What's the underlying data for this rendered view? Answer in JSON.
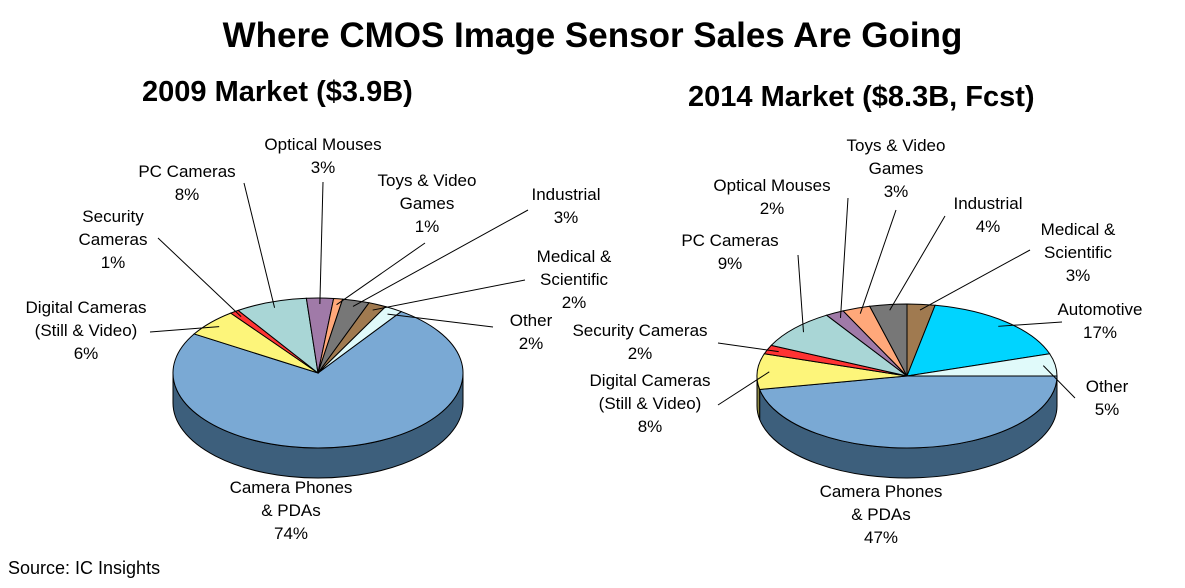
{
  "title": "Where CMOS Image Sensor Sales Are Going",
  "source": "Source:  IC Insights",
  "colors": {
    "camera_phones": "#7aa9d4",
    "camera_phones_side": "#3d5f7c",
    "digital_cameras": "#fdf57a",
    "security_cameras": "#ff3333",
    "pc_cameras": "#a9d6d6",
    "optical_mouses": "#a07aa8",
    "toys_video_games": "#ffa87a",
    "industrial": "#777777",
    "medical_scientific": "#a07a50",
    "automotive": "#00d4ff",
    "other": "#e0fafa",
    "leader_line": "#000000"
  },
  "chart_data": [
    {
      "type": "pie",
      "title": "2009 Market ($3.9B)",
      "slices": [
        {
          "key": "camera_phones",
          "label": [
            "Camera Phones",
            "& PDAs"
          ],
          "pct": "74%",
          "value": 74
        },
        {
          "key": "digital_cameras",
          "label": [
            "Digital Cameras",
            "(Still & Video)"
          ],
          "pct": "6%",
          "value": 6
        },
        {
          "key": "security_cameras",
          "label": [
            "Security",
            "Cameras"
          ],
          "pct": "1%",
          "value": 1
        },
        {
          "key": "pc_cameras",
          "label": [
            "PC Cameras"
          ],
          "pct": "8%",
          "value": 8
        },
        {
          "key": "optical_mouses",
          "label": [
            "Optical Mouses"
          ],
          "pct": "3%",
          "value": 3
        },
        {
          "key": "toys_video_games",
          "label": [
            "Toys & Video",
            "Games"
          ],
          "pct": "1%",
          "value": 1
        },
        {
          "key": "industrial",
          "label": [
            "Industrial"
          ],
          "pct": "3%",
          "value": 3
        },
        {
          "key": "medical_scientific",
          "label": [
            "Medical &",
            "Scientific"
          ],
          "pct": "2%",
          "value": 2
        },
        {
          "key": "other",
          "label": [
            "Other"
          ],
          "pct": "2%",
          "value": 2
        }
      ]
    },
    {
      "type": "pie",
      "title": "2014 Market ($8.3B, Fcst)",
      "slices": [
        {
          "key": "camera_phones",
          "label": [
            "Camera Phones",
            "& PDAs"
          ],
          "pct": "47%",
          "value": 47
        },
        {
          "key": "digital_cameras",
          "label": [
            "Digital Cameras",
            "(Still & Video)"
          ],
          "pct": "8%",
          "value": 8
        },
        {
          "key": "security_cameras",
          "label": [
            "Security Cameras"
          ],
          "pct": "2%",
          "value": 2
        },
        {
          "key": "pc_cameras",
          "label": [
            "PC Cameras"
          ],
          "pct": "9%",
          "value": 9
        },
        {
          "key": "optical_mouses",
          "label": [
            "Optical Mouses"
          ],
          "pct": "2%",
          "value": 2
        },
        {
          "key": "toys_video_games",
          "label": [
            "Toys & Video",
            "Games"
          ],
          "pct": "3%",
          "value": 3
        },
        {
          "key": "industrial",
          "label": [
            "Industrial"
          ],
          "pct": "4%",
          "value": 4
        },
        {
          "key": "medical_scientific",
          "label": [
            "Medical &",
            "Scientific"
          ],
          "pct": "3%",
          "value": 3
        },
        {
          "key": "automotive",
          "label": [
            "Automotive"
          ],
          "pct": "17%",
          "value": 17
        },
        {
          "key": "other",
          "label": [
            "Other"
          ],
          "pct": "5%",
          "value": 5
        }
      ]
    }
  ]
}
